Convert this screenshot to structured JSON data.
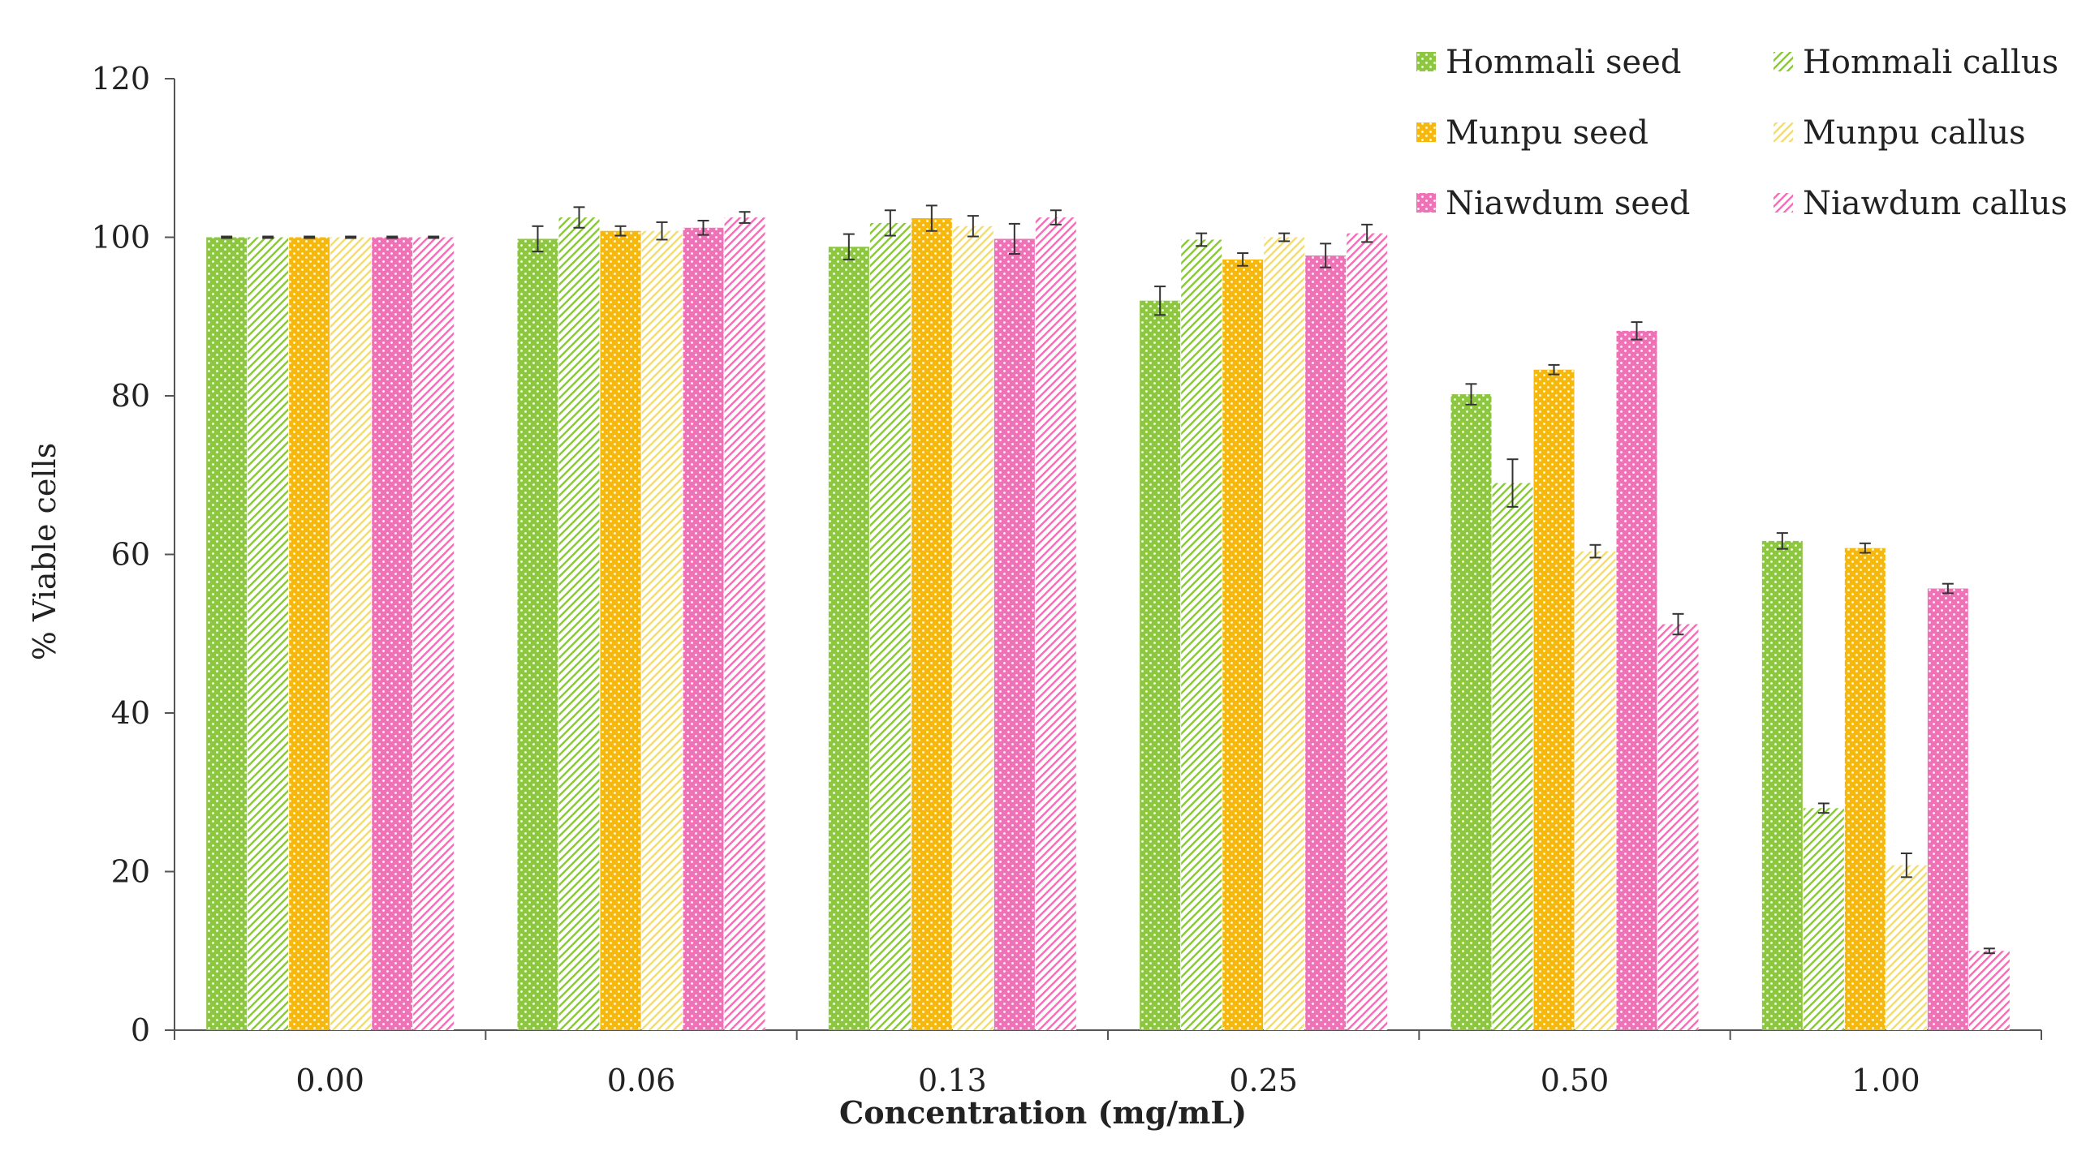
{
  "colors": {
    "green": "#8dc63f",
    "orange": "#f6b80d",
    "yellow": "#f2dc79",
    "pink": "#ef72b6"
  },
  "chart_data": {
    "type": "bar",
    "title": "",
    "xlabel": "Concentration (mg/mL)",
    "ylabel": "% Viable cells",
    "ylim": [
      0,
      120
    ],
    "yticks": [
      "0",
      "20",
      "40",
      "60",
      "80",
      "100",
      "120"
    ],
    "categories": [
      "0.00",
      "0.06",
      "0.13",
      "0.25",
      "0.50",
      "1.00"
    ],
    "legend_position": "top-right",
    "series": [
      {
        "name": "Hommali seed",
        "color": "#8dc63f",
        "pattern": "dots",
        "values": [
          100,
          99.8,
          98.8,
          92.0,
          80.2,
          61.7
        ],
        "errors": [
          0.1,
          1.6,
          1.6,
          1.8,
          1.3,
          1.0
        ]
      },
      {
        "name": "Hommali callus",
        "color": "#8dc63f",
        "pattern": "hatch",
        "values": [
          100,
          102.5,
          101.8,
          99.7,
          69.0,
          28.0
        ],
        "errors": [
          0.1,
          1.3,
          1.6,
          0.8,
          3.0,
          0.6
        ]
      },
      {
        "name": "Munpu seed",
        "color": "#f6b80d",
        "pattern": "dots",
        "values": [
          100,
          100.8,
          102.4,
          97.2,
          83.3,
          60.8
        ],
        "errors": [
          0.1,
          0.6,
          1.6,
          0.8,
          0.6,
          0.6
        ]
      },
      {
        "name": "Munpu callus",
        "color": "#f2dc79",
        "pattern": "hatch",
        "values": [
          100,
          100.8,
          101.4,
          100.0,
          60.4,
          20.8
        ],
        "errors": [
          0.1,
          1.1,
          1.3,
          0.5,
          0.8,
          1.5
        ]
      },
      {
        "name": "Niawdum seed",
        "color": "#ef72b6",
        "pattern": "dots",
        "values": [
          100,
          101.2,
          99.8,
          97.7,
          88.2,
          55.7
        ],
        "errors": [
          0.1,
          0.9,
          1.9,
          1.5,
          1.1,
          0.6
        ]
      },
      {
        "name": "Niawdum callus",
        "color": "#ef72b6",
        "pattern": "hatch",
        "values": [
          100,
          102.5,
          102.5,
          100.5,
          51.2,
          10.0
        ],
        "errors": [
          0.1,
          0.7,
          0.9,
          1.1,
          1.3,
          0.3
        ]
      }
    ]
  }
}
